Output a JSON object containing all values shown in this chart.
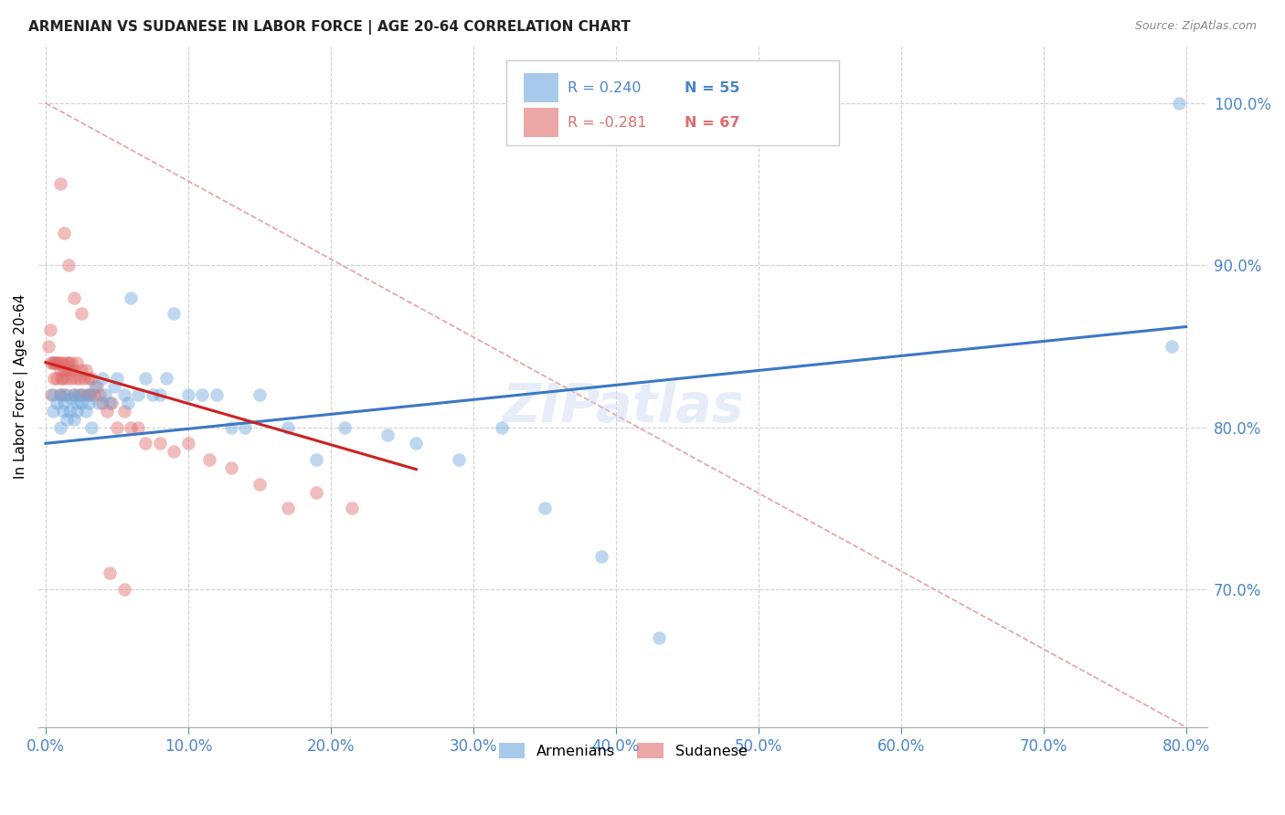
{
  "title": "ARMENIAN VS SUDANESE IN LABOR FORCE | AGE 20-64 CORRELATION CHART",
  "source": "Source: ZipAtlas.com",
  "ylabel": "In Labor Force | Age 20-64",
  "xmin": -0.005,
  "xmax": 0.815,
  "ymin": 0.615,
  "ymax": 1.035,
  "armenian_color": "#6fa8dc",
  "sudanese_color": "#e06c6c",
  "armenian_line_color": "#3b78c4",
  "sudanese_line_color": "#cc2222",
  "ref_line_color": "#e8a0a0",
  "legend_R_armenian": "R = 0.240",
  "legend_N_armenian": "N = 55",
  "legend_R_sudanese": "R = -0.281",
  "legend_N_sudanese": "N = 67",
  "watermark": "ZIPatlas",
  "axis_label_color": "#4a86c8",
  "grid_color": "#d0d0d0",
  "armenian_scatter_x": [
    0.005,
    0.005,
    0.008,
    0.01,
    0.01,
    0.012,
    0.013,
    0.015,
    0.015,
    0.017,
    0.018,
    0.02,
    0.02,
    0.022,
    0.022,
    0.025,
    0.025,
    0.028,
    0.03,
    0.03,
    0.032,
    0.035,
    0.037,
    0.04,
    0.042,
    0.045,
    0.048,
    0.05,
    0.055,
    0.058,
    0.06,
    0.065,
    0.07,
    0.075,
    0.08,
    0.085,
    0.09,
    0.1,
    0.11,
    0.12,
    0.13,
    0.14,
    0.15,
    0.17,
    0.19,
    0.21,
    0.24,
    0.26,
    0.29,
    0.32,
    0.35,
    0.39,
    0.43,
    0.79,
    0.795
  ],
  "armenian_scatter_y": [
    0.82,
    0.81,
    0.815,
    0.8,
    0.82,
    0.81,
    0.815,
    0.805,
    0.82,
    0.81,
    0.818,
    0.805,
    0.82,
    0.815,
    0.81,
    0.82,
    0.815,
    0.81,
    0.82,
    0.815,
    0.8,
    0.825,
    0.815,
    0.83,
    0.82,
    0.815,
    0.825,
    0.83,
    0.82,
    0.815,
    0.88,
    0.82,
    0.83,
    0.82,
    0.82,
    0.83,
    0.87,
    0.82,
    0.82,
    0.82,
    0.8,
    0.8,
    0.82,
    0.8,
    0.78,
    0.8,
    0.795,
    0.79,
    0.78,
    0.8,
    0.75,
    0.72,
    0.67,
    0.85,
    1.0
  ],
  "sudanese_scatter_x": [
    0.002,
    0.003,
    0.004,
    0.004,
    0.005,
    0.006,
    0.006,
    0.007,
    0.008,
    0.008,
    0.009,
    0.01,
    0.01,
    0.011,
    0.011,
    0.012,
    0.012,
    0.013,
    0.013,
    0.014,
    0.015,
    0.015,
    0.016,
    0.017,
    0.018,
    0.018,
    0.019,
    0.02,
    0.021,
    0.022,
    0.023,
    0.024,
    0.025,
    0.026,
    0.027,
    0.028,
    0.029,
    0.03,
    0.031,
    0.032,
    0.034,
    0.036,
    0.038,
    0.04,
    0.043,
    0.046,
    0.05,
    0.055,
    0.06,
    0.065,
    0.07,
    0.08,
    0.09,
    0.1,
    0.115,
    0.13,
    0.15,
    0.17,
    0.19,
    0.215,
    0.01,
    0.013,
    0.016,
    0.02,
    0.025,
    0.045,
    0.055
  ],
  "sudanese_scatter_y": [
    0.85,
    0.86,
    0.84,
    0.82,
    0.84,
    0.84,
    0.83,
    0.84,
    0.84,
    0.83,
    0.84,
    0.835,
    0.82,
    0.84,
    0.83,
    0.84,
    0.83,
    0.835,
    0.82,
    0.835,
    0.84,
    0.83,
    0.84,
    0.835,
    0.84,
    0.83,
    0.835,
    0.82,
    0.83,
    0.84,
    0.82,
    0.83,
    0.835,
    0.82,
    0.83,
    0.835,
    0.82,
    0.83,
    0.82,
    0.83,
    0.82,
    0.825,
    0.82,
    0.815,
    0.81,
    0.815,
    0.8,
    0.81,
    0.8,
    0.8,
    0.79,
    0.79,
    0.785,
    0.79,
    0.78,
    0.775,
    0.765,
    0.75,
    0.76,
    0.75,
    0.95,
    0.92,
    0.9,
    0.88,
    0.87,
    0.71,
    0.7
  ],
  "armenian_line_x": [
    0.0,
    0.8
  ],
  "armenian_line_y": [
    0.79,
    0.862
  ],
  "sudanese_line_x": [
    0.0,
    0.26
  ],
  "sudanese_line_y": [
    0.84,
    0.774
  ],
  "ref_line_x": [
    0.0,
    0.8
  ],
  "ref_line_y": [
    1.0,
    0.615
  ]
}
